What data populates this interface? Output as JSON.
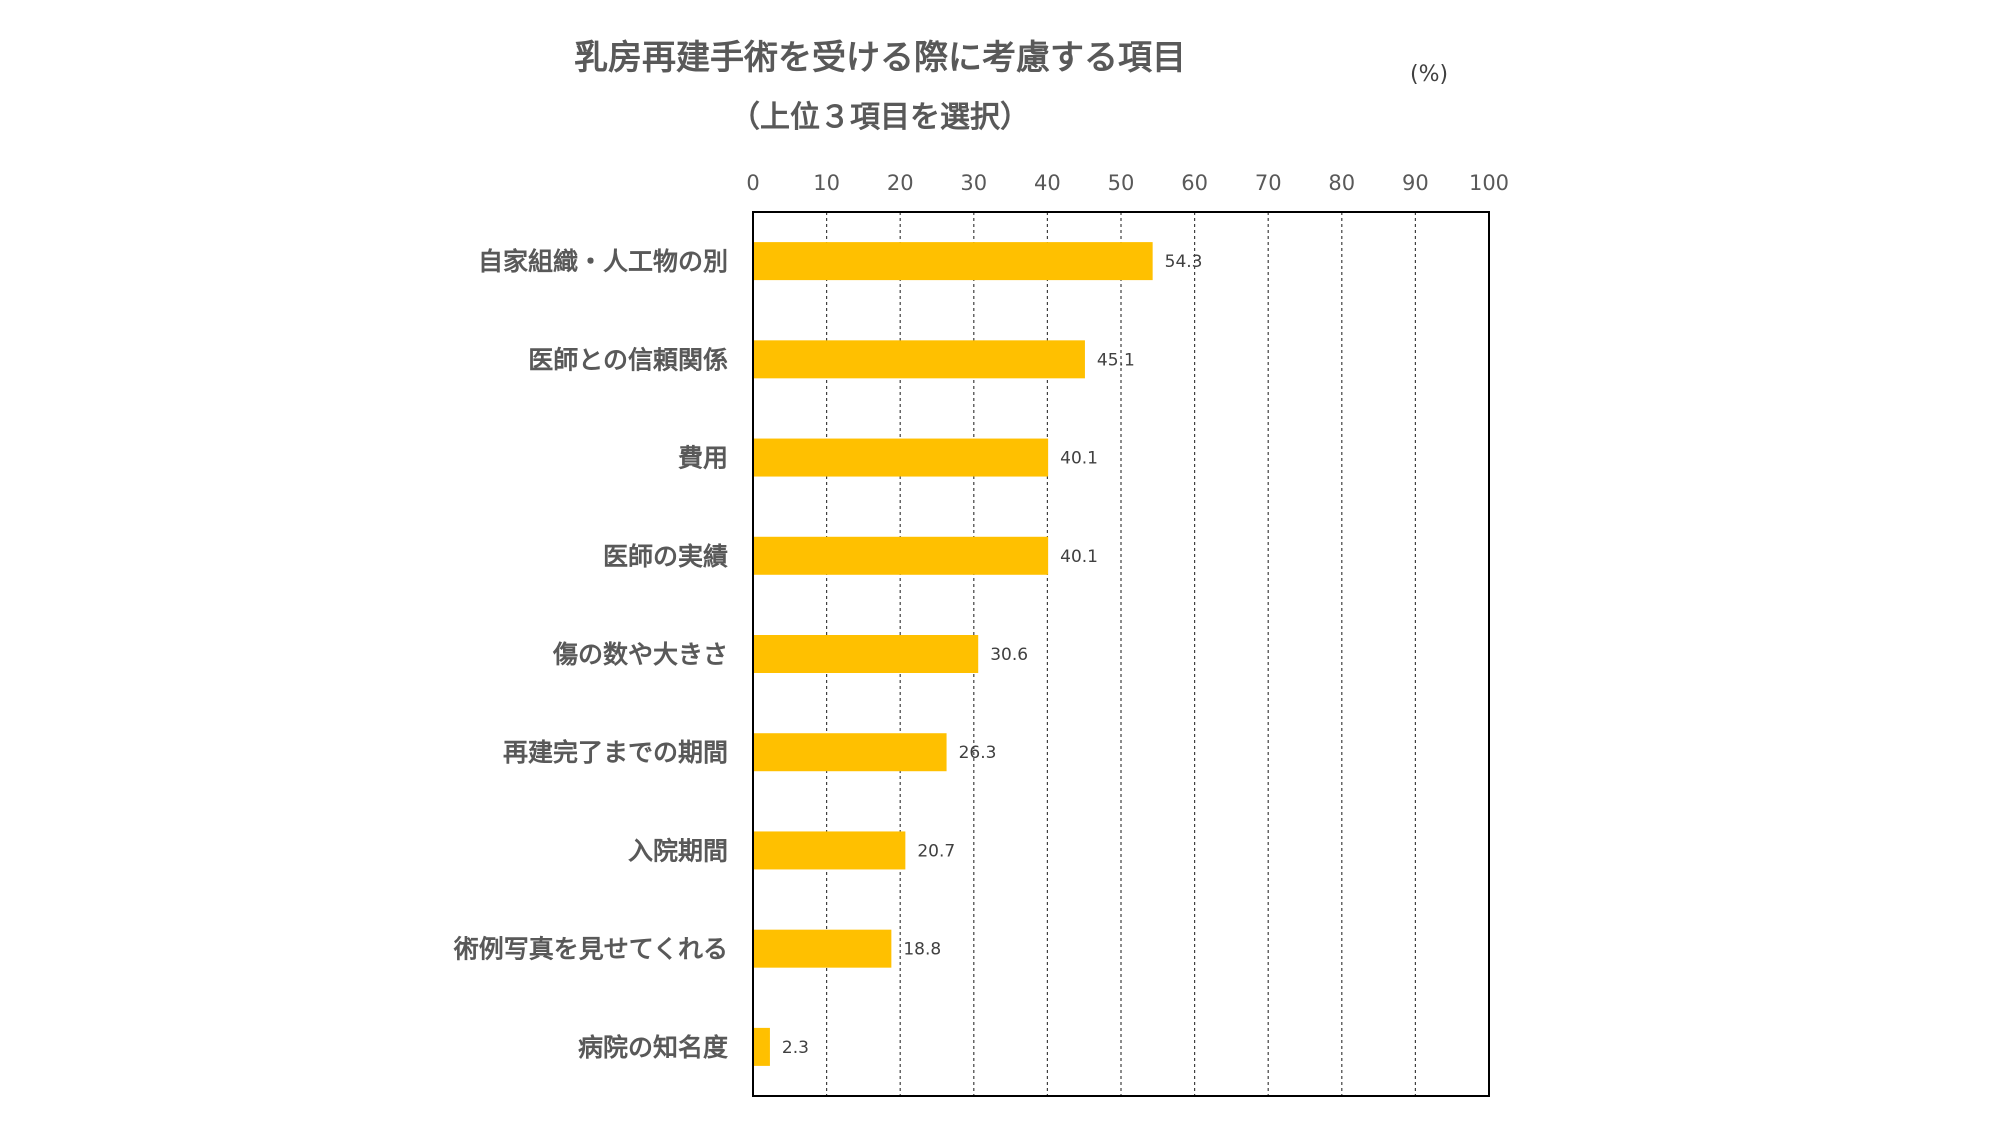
{
  "header": {
    "title": "乳房再建手術を受ける際に考慮する項目",
    "subtitle": "（上位３項目を選択）",
    "unit": "(%)"
  },
  "colors": {
    "bar": "#FFC000",
    "grid": "#404040",
    "frame": "#000000"
  },
  "chart_data": {
    "type": "bar",
    "orientation": "horizontal",
    "title": "乳房再建手術を受ける際に考慮する項目",
    "subtitle": "（上位３項目を選択）",
    "unit": "(%)",
    "categories": [
      "自家組織・人工物の別",
      "医師との信頼関係",
      "費用",
      "医師の実績",
      "傷の数や大きさ",
      "再建完了までの期間",
      "入院期間",
      "術例写真を見せてくれる",
      "病院の知名度"
    ],
    "values": [
      54.3,
      45.1,
      40.1,
      40.1,
      30.6,
      26.3,
      20.7,
      18.8,
      2.3
    ],
    "xlim": [
      0,
      100
    ],
    "xticks": [
      0,
      10,
      20,
      30,
      40,
      50,
      60,
      70,
      80,
      90,
      100
    ],
    "x_axis_position": "top",
    "grid": "vertical dashed",
    "data_labels": true
  }
}
